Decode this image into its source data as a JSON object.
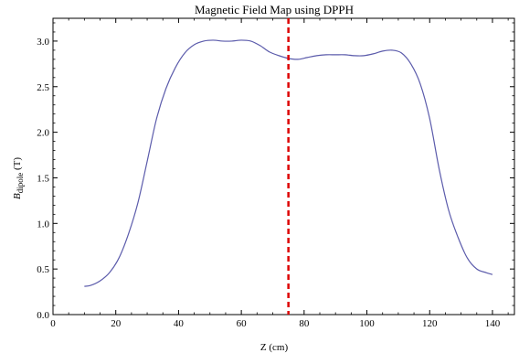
{
  "chart_data": {
    "type": "line",
    "title": "Magnetic Field Map using DPPH",
    "xlabel": "Z (cm)",
    "ylabel_main": "B",
    "ylabel_sub": "dipole",
    "ylabel_unit": " (T)",
    "xlim": [
      0,
      147
    ],
    "ylim": [
      0,
      3.25
    ],
    "xticks": [
      0,
      20,
      40,
      60,
      80,
      100,
      120,
      140
    ],
    "yticks": [
      0.0,
      0.5,
      1.0,
      1.5,
      2.0,
      2.5,
      3.0
    ],
    "xtick_labels": [
      "0",
      "20",
      "40",
      "60",
      "80",
      "100",
      "120",
      "140"
    ],
    "ytick_labels": [
      "0.0",
      "0.5",
      "1.0",
      "1.5",
      "2.0",
      "2.5",
      "3.0"
    ],
    "grid": false,
    "series": [
      {
        "color": "#5b5bab",
        "x": [
          10,
          12,
          15,
          18,
          21,
          24,
          27,
          30,
          33,
          36,
          39,
          42,
          45,
          48,
          51,
          54,
          57,
          60,
          63,
          66,
          69,
          72,
          75,
          78,
          81,
          84,
          87,
          90,
          93,
          96,
          99,
          102,
          105,
          108,
          111,
          114,
          117,
          120,
          123,
          126,
          129,
          132,
          135,
          138,
          140
        ],
        "y": [
          0.31,
          0.32,
          0.37,
          0.46,
          0.62,
          0.88,
          1.22,
          1.68,
          2.15,
          2.48,
          2.71,
          2.87,
          2.96,
          3.0,
          3.01,
          3.0,
          3.0,
          3.01,
          3.0,
          2.95,
          2.88,
          2.84,
          2.81,
          2.8,
          2.82,
          2.84,
          2.85,
          2.85,
          2.85,
          2.84,
          2.84,
          2.86,
          2.89,
          2.9,
          2.87,
          2.75,
          2.53,
          2.15,
          1.6,
          1.15,
          0.85,
          0.62,
          0.5,
          0.46,
          0.44
        ]
      }
    ],
    "vline": {
      "x": 75,
      "color": "#dd0000",
      "style": "dashed"
    }
  }
}
